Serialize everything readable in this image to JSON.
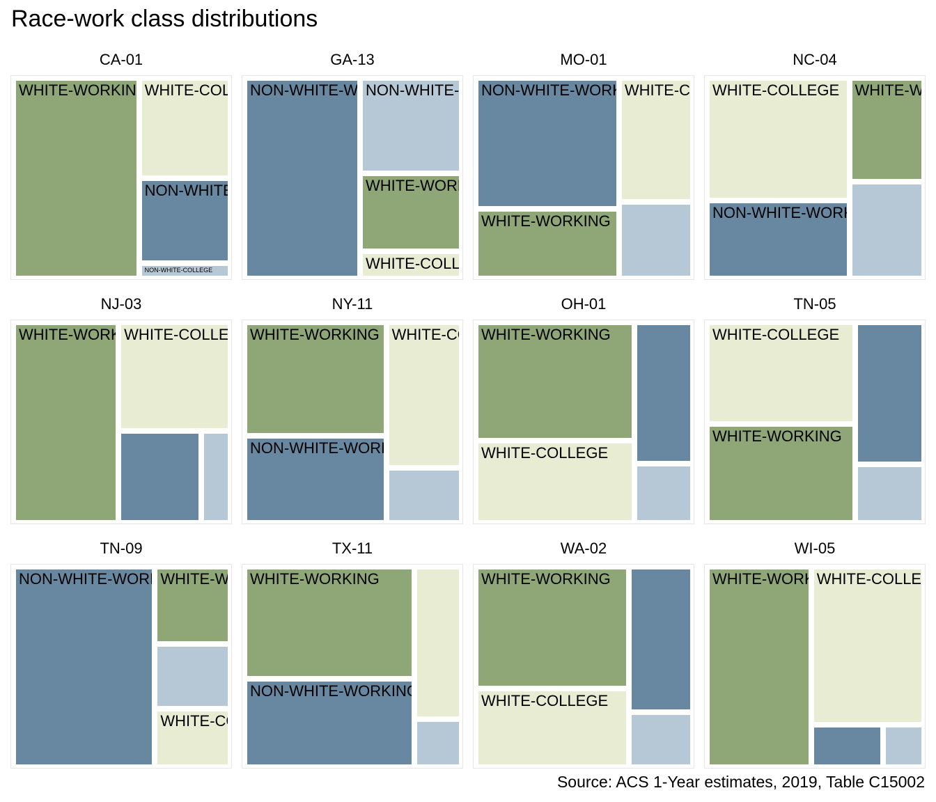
{
  "title": "Race-work class distributions",
  "caption": "Source: ACS 1-Year estimates, 2019, Table C15002",
  "colors": {
    "WHITE-WORKING": "#8fa676",
    "WHITE-COLLEGE": "#e8ecd3",
    "NON-WHITE-WORKING": "#6887a1",
    "NON-WHITE-COLLEGE": "#b6c8d6"
  },
  "chart_data": {
    "type": "treemap",
    "categories": [
      "WHITE-WORKING",
      "WHITE-COLLEGE",
      "NON-WHITE-WORKING",
      "NON-WHITE-COLLEGE"
    ],
    "districts": [
      {
        "name": "CA-01",
        "values": {
          "WHITE-WORKING": 55,
          "WHITE-COLLEGE": 20,
          "NON-WHITE-WORKING": 17,
          "NON-WHITE-COLLEGE": 3
        },
        "labels": [
          "WHITE-WORKING",
          "NON-WHITE-COLLEGE",
          "NON-WHITE-WORKING",
          "WHITE-COLLEGE"
        ]
      },
      {
        "name": "GA-13",
        "values": {
          "WHITE-WORKING": 17,
          "WHITE-COLLEGE": 6,
          "NON-WHITE-WORKING": 50,
          "NON-WHITE-COLLEGE": 21
        },
        "labels": [
          "NON-WHITE-WORKING",
          "WHITE-COLLEGE",
          "WHITE-WORKING",
          "NON-WHITE-COLLEGE"
        ]
      },
      {
        "name": "MO-01",
        "values": {
          "WHITE-WORKING": 23,
          "WHITE-COLLEGE": 21,
          "NON-WHITE-WORKING": 43,
          "NON-WHITE-COLLEGE": 13
        },
        "labels": [
          "WHITE-WORKING",
          "NON-WHITE-WORKING",
          "WHITE-COLLEGE"
        ]
      },
      {
        "name": "NC-04",
        "values": {
          "WHITE-WORKING": 16,
          "WHITE-COLLEGE": 36,
          "NON-WHITE-WORKING": 23,
          "NON-WHITE-COLLEGE": 15
        },
        "labels": [
          "NON-WHITE-WORKING",
          "WHITE-COLLEGE",
          "WHITE-WORKING"
        ]
      },
      {
        "name": "NJ-03",
        "values": {
          "WHITE-WORKING": 47,
          "WHITE-COLLEGE": 27,
          "NON-WHITE-WORKING": 17,
          "NON-WHITE-COLLEGE": 6
        },
        "labels": [
          "WHITE-COLLEGE",
          "WHITE-WORKING"
        ]
      },
      {
        "name": "NY-11",
        "values": {
          "WHITE-WORKING": 35,
          "WHITE-COLLEGE": 24,
          "NON-WHITE-WORKING": 27,
          "NON-WHITE-COLLEGE": 9
        },
        "labels": [
          "NON-WHITE-WORKING",
          "WHITE-WORKING",
          "WHITE-COLLEGE"
        ]
      },
      {
        "name": "OH-01",
        "values": {
          "WHITE-WORKING": 43,
          "WHITE-COLLEGE": 30,
          "NON-WHITE-WORKING": 19,
          "NON-WHITE-COLLEGE": 8
        },
        "labels": [
          "WHITE-COLLEGE",
          "WHITE-WORKING"
        ]
      },
      {
        "name": "TN-05",
        "values": {
          "WHITE-WORKING": 33,
          "WHITE-COLLEGE": 34,
          "NON-WHITE-WORKING": 22,
          "NON-WHITE-COLLEGE": 9
        },
        "labels": [
          "WHITE-COLLEGE",
          "WHITE-WORKING"
        ]
      },
      {
        "name": "TN-09",
        "values": {
          "WHITE-WORKING": 12,
          "WHITE-COLLEGE": 9,
          "NON-WHITE-WORKING": 58,
          "NON-WHITE-COLLEGE": 10
        },
        "labels": [
          "NON-WHITE-WORKING",
          "WHITE-COLLEGE",
          "WHITE-WORKING"
        ]
      },
      {
        "name": "TX-11",
        "values": {
          "WHITE-WORKING": 42,
          "WHITE-COLLEGE": 16,
          "NON-WHITE-WORKING": 33,
          "NON-WHITE-COLLEGE": 5
        },
        "labels": [
          "NON-WHITE-WORKING",
          "WHITE-WORKING"
        ]
      },
      {
        "name": "WA-02",
        "values": {
          "WHITE-WORKING": 42,
          "WHITE-COLLEGE": 27,
          "NON-WHITE-WORKING": 21,
          "NON-WHITE-COLLEGE": 8
        },
        "labels": [
          "WHITE-WORKING",
          "WHITE-COLLEGE"
        ]
      },
      {
        "name": "WI-05",
        "values": {
          "WHITE-WORKING": 48,
          "WHITE-COLLEGE": 41,
          "NON-WHITE-WORKING": 7,
          "NON-WHITE-COLLEGE": 4
        },
        "labels": [
          "WHITE-WORKING",
          "WHITE-COLLEGE"
        ]
      }
    ]
  }
}
